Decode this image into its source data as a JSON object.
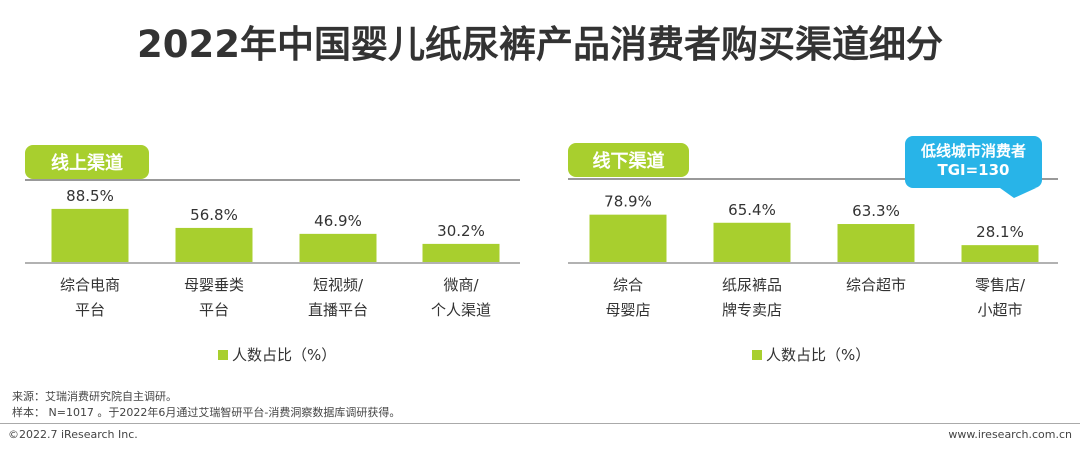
{
  "title": "2022年中国婴儿纸尿裤产品消费者购买渠道细分",
  "colors": {
    "bar": "#a8cf2e",
    "badge": "#a8cf2e",
    "callout": "#28b4e8",
    "text": "#333333"
  },
  "chart_data": [
    {
      "type": "bar",
      "panel_label": "线上渠道",
      "categories": [
        "综合电商\n平台",
        "母婴垂类\n平台",
        "短视频/\n直播平台",
        "微商/\n个人渠道"
      ],
      "series": [
        {
          "name": "人数占比（%）",
          "values": [
            88.5,
            56.8,
            46.9,
            30.2
          ]
        }
      ],
      "value_labels": [
        "88.5%",
        "56.8%",
        "46.9%",
        "30.2%"
      ],
      "legend": "人数占比（%）",
      "legend_position": "bottom",
      "ylim": [
        0,
        100
      ],
      "grid": false
    },
    {
      "type": "bar",
      "panel_label": "线下渠道",
      "categories": [
        "综合\n母婴店",
        "纸尿裤品\n牌专卖店",
        "综合超市",
        "零售店/\n小超市"
      ],
      "series": [
        {
          "name": "人数占比（%）",
          "values": [
            78.9,
            65.4,
            63.3,
            28.1
          ]
        }
      ],
      "value_labels": [
        "78.9%",
        "65.4%",
        "63.3%",
        "28.1%"
      ],
      "legend": "人数占比（%）",
      "legend_position": "bottom",
      "ylim": [
        0,
        100
      ],
      "grid": false,
      "annotation": {
        "line1": "低线城市消费者",
        "line2": "TGI=130"
      }
    }
  ],
  "notes": {
    "source": "来源：艾瑞消费研究院自主调研。",
    "sample": "样本： N=1017 。于2022年6月通过艾瑞智研平台-消费洞察数据库调研获得。"
  },
  "footer": {
    "copyright": "©2022.7 iResearch Inc.",
    "website": "www.iresearch.com.cn"
  }
}
